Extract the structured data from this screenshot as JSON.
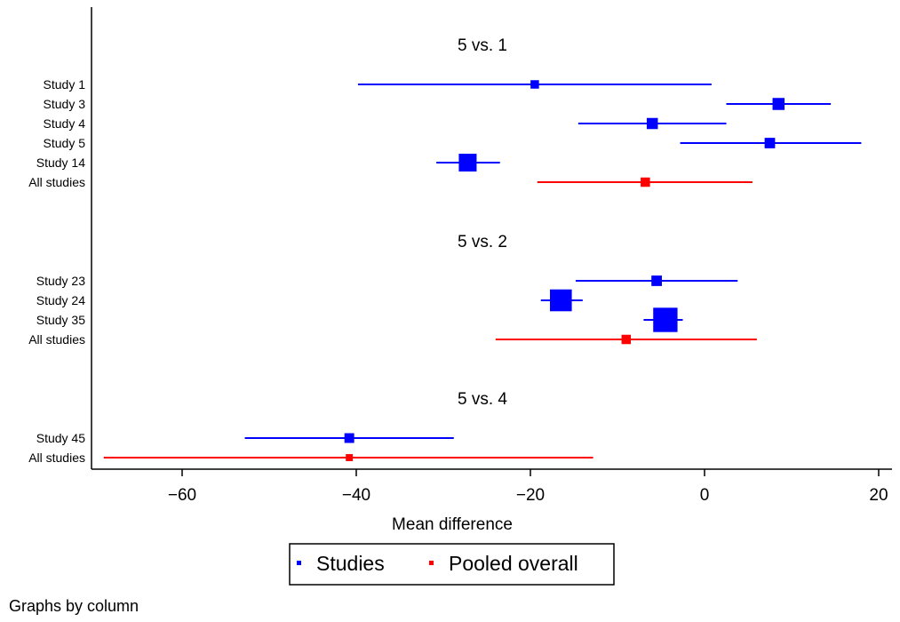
{
  "chart_data": {
    "type": "forest",
    "xlabel": "Mean difference",
    "xlim": [
      -70,
      21
    ],
    "xticks": [
      -60,
      -40,
      -20,
      0,
      20
    ],
    "legend": {
      "position": "bottom",
      "entries": [
        {
          "label": "Studies",
          "color": "#0000ff"
        },
        {
          "label": "Pooled overall",
          "color": "#ff0000"
        }
      ]
    },
    "panels": [
      {
        "title": "5 vs. 1",
        "rows": [
          {
            "label": "Study 1",
            "estimate": -19.5,
            "lower": -39.8,
            "upper": 0.8,
            "weight": 1,
            "kind": "study"
          },
          {
            "label": "Study 3",
            "estimate": 8.5,
            "lower": 2.5,
            "upper": 14.5,
            "weight": 3,
            "kind": "study"
          },
          {
            "label": "Study 4",
            "estimate": -6.0,
            "lower": -14.5,
            "upper": 2.5,
            "weight": 2.4,
            "kind": "study"
          },
          {
            "label": "Study 5",
            "estimate": 7.5,
            "lower": -2.8,
            "upper": 18.0,
            "weight": 2,
            "kind": "study"
          },
          {
            "label": "Study 14",
            "estimate": -27.2,
            "lower": -30.8,
            "upper": -23.5,
            "weight": 8.5,
            "kind": "study"
          },
          {
            "label": "All studies",
            "estimate": -6.8,
            "lower": -19.2,
            "upper": 5.5,
            "weight": 1.4,
            "kind": "pooled"
          }
        ]
      },
      {
        "title": "5 vs. 2",
        "rows": [
          {
            "label": "Study 23",
            "estimate": -5.5,
            "lower": -14.8,
            "upper": 3.8,
            "weight": 2,
            "kind": "study"
          },
          {
            "label": "Study 24",
            "estimate": -16.5,
            "lower": -18.8,
            "upper": -14.0,
            "weight": 14,
            "kind": "study"
          },
          {
            "label": "Study 35",
            "estimate": -4.5,
            "lower": -7.0,
            "upper": -2.5,
            "weight": 18,
            "kind": "study"
          },
          {
            "label": "All studies",
            "estimate": -9.0,
            "lower": -24.0,
            "upper": 6.0,
            "weight": 1.4,
            "kind": "pooled"
          }
        ]
      },
      {
        "title": "5 vs. 4",
        "rows": [
          {
            "label": "Study 45",
            "estimate": -40.8,
            "lower": -52.8,
            "upper": -28.8,
            "weight": 1.6,
            "kind": "study"
          },
          {
            "label": "All studies",
            "estimate": -40.8,
            "lower": -69.0,
            "upper": -12.8,
            "weight": 0.5,
            "kind": "pooled"
          }
        ]
      }
    ]
  },
  "footer_note": "Graphs by column"
}
